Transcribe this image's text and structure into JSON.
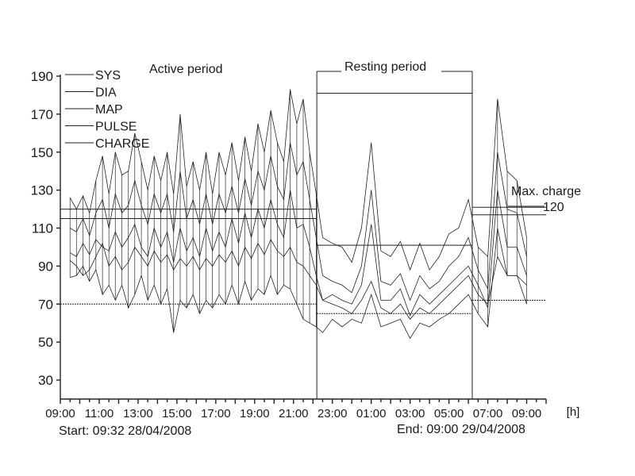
{
  "chart_data": {
    "type": "line",
    "x_unit_label": "[h]",
    "start_label": "Start: 09:32 28/04/2008",
    "end_label": "End: 09:00 29/04/2008",
    "active_label": "Active period",
    "resting_label": "Resting period",
    "max_charge_label": "Max. charge",
    "max_charge_value": "120",
    "ylim": [
      20,
      190
    ],
    "yticks": [
      190,
      170,
      150,
      130,
      110,
      90,
      70,
      50,
      30
    ],
    "xlim": [
      9,
      34
    ],
    "xticks": [
      {
        "h": 9,
        "label": "09:00"
      },
      {
        "h": 11,
        "label": "11:00"
      },
      {
        "h": 13,
        "label": "13:00"
      },
      {
        "h": 15,
        "label": "15:00"
      },
      {
        "h": 17,
        "label": "17:00"
      },
      {
        "h": 19,
        "label": "19:00"
      },
      {
        "h": 21,
        "label": "21:00"
      },
      {
        "h": 23,
        "label": "23:00"
      },
      {
        "h": 25,
        "label": "01:00"
      },
      {
        "h": 27,
        "label": "03:00"
      },
      {
        "h": 29,
        "label": "05:00"
      },
      {
        "h": 31,
        "label": "07:00"
      },
      {
        "h": 33,
        "label": "09:00"
      }
    ],
    "resting_period": {
      "start_h": 22.2,
      "end_h": 30.2
    },
    "legend": [
      "SYS",
      "DIA",
      "MAP",
      "PULSE",
      "CHARGE"
    ],
    "thresholds": {
      "active": {
        "start_h": 9,
        "end_h": 22.2,
        "sys": [
          115,
          120
        ],
        "dia": 70
      },
      "resting": {
        "start_h": 22.2,
        "end_h": 30.2,
        "sys": 101,
        "dia": 65,
        "box_top": 181
      },
      "morning": {
        "start_h": 30.2,
        "end_h": 34,
        "sys": [
          117,
          121
        ],
        "dia": 72
      }
    },
    "x": [
      9.5,
      9.83,
      10.17,
      10.5,
      10.83,
      11.17,
      11.5,
      11.83,
      12.17,
      12.5,
      12.83,
      13.17,
      13.5,
      13.83,
      14.17,
      14.5,
      14.83,
      15.17,
      15.5,
      15.83,
      16.17,
      16.5,
      16.83,
      17.17,
      17.5,
      17.83,
      18.17,
      18.5,
      18.83,
      19.17,
      19.5,
      19.83,
      20.17,
      20.5,
      20.83,
      21.17,
      21.5,
      21.83,
      22.17,
      22.5,
      23,
      23.5,
      24,
      24.5,
      25,
      25.5,
      26,
      26.5,
      27,
      27.5,
      28,
      28.5,
      29,
      29.5,
      30,
      30.5,
      31,
      31.5,
      32,
      32.5,
      33
    ],
    "series": [
      {
        "name": "SYS",
        "values": [
          126,
          120,
          127,
          118,
          135,
          148,
          128,
          150,
          138,
          140,
          160,
          145,
          130,
          148,
          135,
          150,
          128,
          170,
          132,
          145,
          130,
          150,
          128,
          150,
          138,
          155,
          135,
          158,
          140,
          165,
          150,
          172,
          155,
          145,
          183,
          165,
          178,
          150,
          128,
          105,
          102,
          100,
          92,
          110,
          155,
          98,
          95,
          103,
          88,
          102,
          88,
          95,
          107,
          110,
          125,
          100,
          95,
          178,
          140,
          135,
          105
        ]
      },
      {
        "name": "DIA",
        "values": [
          84,
          85,
          90,
          82,
          88,
          75,
          80,
          72,
          80,
          68,
          75,
          85,
          72,
          80,
          70,
          78,
          55,
          72,
          68,
          75,
          65,
          72,
          68,
          75,
          70,
          80,
          70,
          82,
          72,
          78,
          75,
          85,
          75,
          80,
          78,
          70,
          62,
          60,
          58,
          55,
          62,
          58,
          62,
          60,
          75,
          58,
          60,
          62,
          52,
          60,
          58,
          62,
          65,
          70,
          75,
          65,
          58,
          110,
          85,
          85,
          70
        ]
      },
      {
        "name": "MAP",
        "values": [
          97,
          95,
          102,
          96,
          104,
          100,
          98,
          108,
          100,
          105,
          112,
          100,
          95,
          110,
          100,
          108,
          92,
          110,
          98,
          105,
          95,
          110,
          98,
          108,
          100,
          115,
          102,
          118,
          105,
          120,
          110,
          125,
          112,
          105,
          130,
          110,
          112,
          100,
          85,
          72,
          75,
          72,
          70,
          80,
          112,
          72,
          72,
          78,
          64,
          75,
          70,
          75,
          80,
          85,
          90,
          80,
          68,
          130,
          100,
          100,
          85
        ]
      },
      {
        "name": "PULSE",
        "values": [
          93,
          90,
          85,
          88,
          95,
          102,
          90,
          95,
          88,
          92,
          100,
          95,
          90,
          98,
          92,
          96,
          88,
          94,
          90,
          95,
          88,
          94,
          90,
          96,
          92,
          98,
          90,
          100,
          94,
          102,
          96,
          104,
          98,
          95,
          100,
          92,
          90,
          85,
          80,
          72,
          70,
          68,
          65,
          72,
          82,
          68,
          65,
          70,
          62,
          68,
          65,
          70,
          75,
          80,
          85,
          75,
          70,
          95,
          85,
          85,
          80
        ]
      },
      {
        "name": "CHARGE",
        "values": [
          110,
          108,
          115,
          106,
          118,
          125,
          110,
          128,
          118,
          122,
          135,
          122,
          112,
          128,
          118,
          128,
          108,
          140,
          115,
          125,
          112,
          128,
          112,
          128,
          118,
          132,
          118,
          136,
          122,
          140,
          130,
          148,
          132,
          125,
          155,
          138,
          145,
          125,
          105,
          85,
          82,
          80,
          76,
          90,
          130,
          82,
          80,
          86,
          72,
          85,
          78,
          82,
          90,
          95,
          105,
          88,
          78,
          150,
          120,
          118,
          95
        ]
      }
    ]
  }
}
